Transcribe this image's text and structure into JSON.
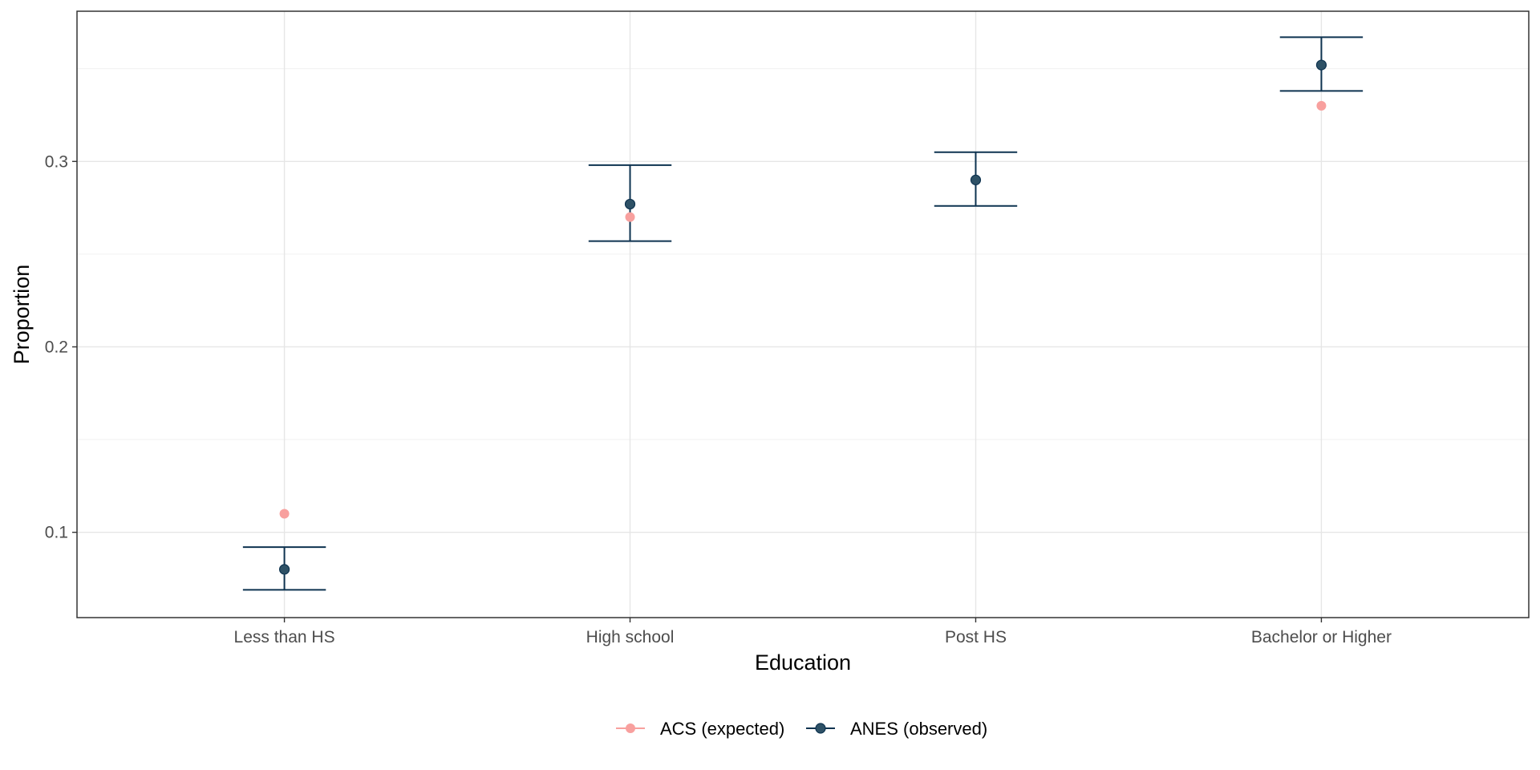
{
  "chart_data": {
    "type": "scatter",
    "title": "",
    "xlabel": "Education",
    "ylabel": "Proportion",
    "categories": [
      "Less than HS",
      "High school",
      "Post HS",
      "Bachelor or Higher"
    ],
    "ylim": [
      0.054,
      0.381
    ],
    "yticks": [
      0.1,
      0.2,
      0.3
    ],
    "yticks_text": [
      "0.1",
      "0.2",
      "0.3"
    ],
    "grid": true,
    "legend_position": "bottom",
    "series": [
      {
        "name": "ACS (expected)",
        "color": "#F8A09E",
        "values": [
          0.11,
          0.27,
          0.29,
          0.33
        ]
      },
      {
        "name": "ANES (observed)",
        "color": "#2E5166",
        "values": [
          0.08,
          0.277,
          0.29,
          0.352
        ],
        "error_low": [
          0.069,
          0.257,
          0.276,
          0.338
        ],
        "error_high": [
          0.092,
          0.298,
          0.305,
          0.367
        ]
      }
    ],
    "errorbar_color": "#0E3350"
  }
}
